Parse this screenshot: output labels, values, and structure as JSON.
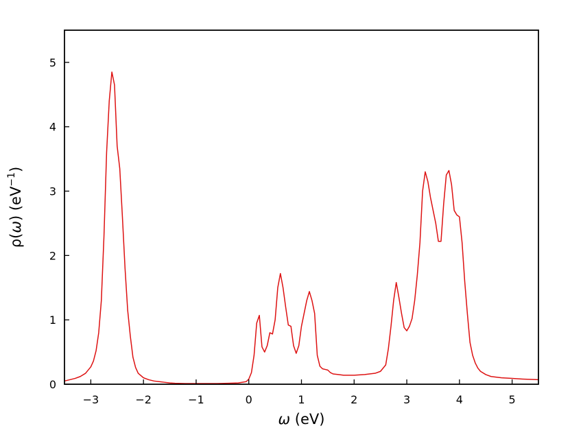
{
  "chart_data": {
    "type": "line",
    "title": "",
    "xlabel": {
      "symbol": "ω",
      "text": " (eV)"
    },
    "ylabel": {
      "prefix": "ρ(",
      "symbol": "ω",
      "middle": ") (eV",
      "superscript": "−1",
      "suffix": ")"
    },
    "xlim": [
      -3.5,
      5.5
    ],
    "ylim": [
      0,
      5.5
    ],
    "xticks": [
      -3,
      -2,
      -1,
      0,
      1,
      2,
      3,
      4,
      5
    ],
    "xtick_labels": [
      "−3",
      "−2",
      "−1",
      "0",
      "1",
      "2",
      "3",
      "4",
      "5"
    ],
    "yticks": [
      0,
      1,
      2,
      3,
      4,
      5
    ],
    "ytick_labels": [
      "0",
      "1",
      "2",
      "3",
      "4",
      "5"
    ],
    "grid": false,
    "legend": "none",
    "line_color": "#dd1111",
    "series": [
      {
        "x": [
          -3.5,
          -3.4,
          -3.3,
          -3.2,
          -3.1,
          -3.0,
          -2.95,
          -2.9,
          -2.85,
          -2.8,
          -2.75,
          -2.7,
          -2.65,
          -2.6,
          -2.55,
          -2.5,
          -2.45,
          -2.4,
          -2.35,
          -2.3,
          -2.25,
          -2.2,
          -2.15,
          -2.1,
          -2.0,
          -1.9,
          -1.8,
          -1.7,
          -1.6,
          -1.5,
          -1.4,
          -1.2,
          -1.0,
          -0.8,
          -0.6,
          -0.4,
          -0.2,
          -0.05,
          0.0,
          0.05,
          0.1,
          0.15,
          0.2,
          0.25,
          0.3,
          0.35,
          0.4,
          0.45,
          0.5,
          0.55,
          0.6,
          0.65,
          0.7,
          0.75,
          0.8,
          0.85,
          0.9,
          0.95,
          1.0,
          1.05,
          1.1,
          1.15,
          1.2,
          1.25,
          1.3,
          1.35,
          1.4,
          1.45,
          1.5,
          1.55,
          1.6,
          1.7,
          1.8,
          2.0,
          2.2,
          2.4,
          2.5,
          2.6,
          2.65,
          2.7,
          2.75,
          2.8,
          2.85,
          2.9,
          2.95,
          3.0,
          3.05,
          3.1,
          3.15,
          3.2,
          3.25,
          3.3,
          3.35,
          3.4,
          3.45,
          3.5,
          3.55,
          3.6,
          3.65,
          3.7,
          3.75,
          3.8,
          3.85,
          3.9,
          3.95,
          4.0,
          4.05,
          4.1,
          4.15,
          4.2,
          4.25,
          4.3,
          4.35,
          4.4,
          4.5,
          4.6,
          4.8,
          5.0,
          5.2,
          5.5
        ],
        "y": [
          0.05,
          0.07,
          0.09,
          0.12,
          0.17,
          0.27,
          0.36,
          0.52,
          0.8,
          1.3,
          2.3,
          3.6,
          4.4,
          4.85,
          4.65,
          3.7,
          3.35,
          2.6,
          1.8,
          1.15,
          0.75,
          0.42,
          0.26,
          0.17,
          0.1,
          0.07,
          0.05,
          0.04,
          0.03,
          0.02,
          0.015,
          0.01,
          0.01,
          0.01,
          0.01,
          0.015,
          0.02,
          0.04,
          0.08,
          0.18,
          0.45,
          0.95,
          1.07,
          0.58,
          0.5,
          0.6,
          0.8,
          0.78,
          1.0,
          1.5,
          1.72,
          1.5,
          1.2,
          0.92,
          0.9,
          0.6,
          0.48,
          0.6,
          0.9,
          1.1,
          1.3,
          1.44,
          1.3,
          1.1,
          0.45,
          0.28,
          0.24,
          0.23,
          0.22,
          0.18,
          0.16,
          0.15,
          0.14,
          0.14,
          0.15,
          0.17,
          0.2,
          0.3,
          0.55,
          0.9,
          1.3,
          1.58,
          1.35,
          1.1,
          0.88,
          0.83,
          0.9,
          1.02,
          1.3,
          1.7,
          2.2,
          3.0,
          3.3,
          3.15,
          2.9,
          2.7,
          2.5,
          2.22,
          2.22,
          2.8,
          3.25,
          3.32,
          3.1,
          2.7,
          2.63,
          2.6,
          2.2,
          1.6,
          1.1,
          0.65,
          0.45,
          0.33,
          0.25,
          0.2,
          0.15,
          0.12,
          0.1,
          0.09,
          0.08,
          0.07
        ]
      }
    ]
  }
}
